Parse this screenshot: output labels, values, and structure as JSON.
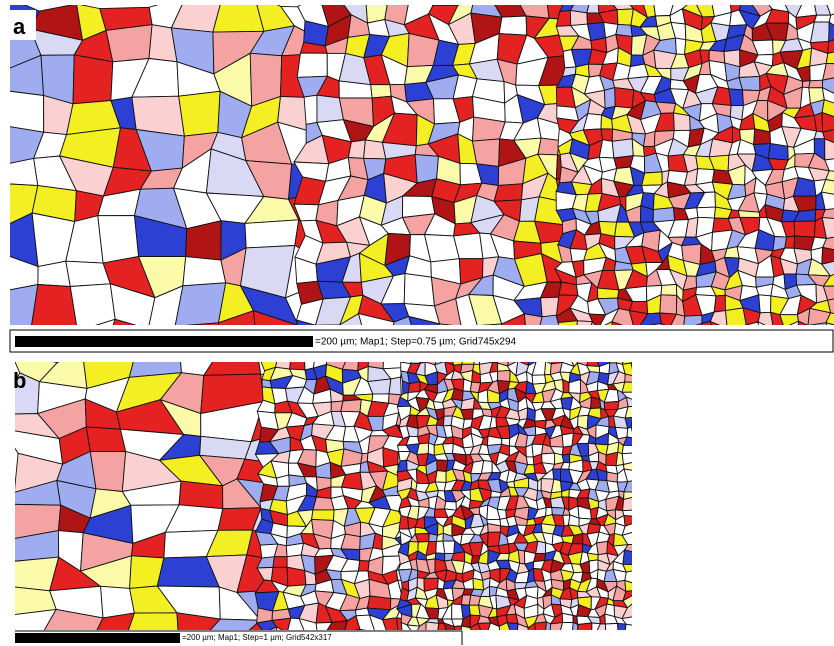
{
  "panels": [
    {
      "label": "a",
      "scale_text": "=200 µm; Map1; Step=0.75 µm; Grid745x294"
    },
    {
      "label": "b",
      "scale_text": "=200 µm; Map1; Step=1 µm; Grid542x317"
    }
  ]
}
